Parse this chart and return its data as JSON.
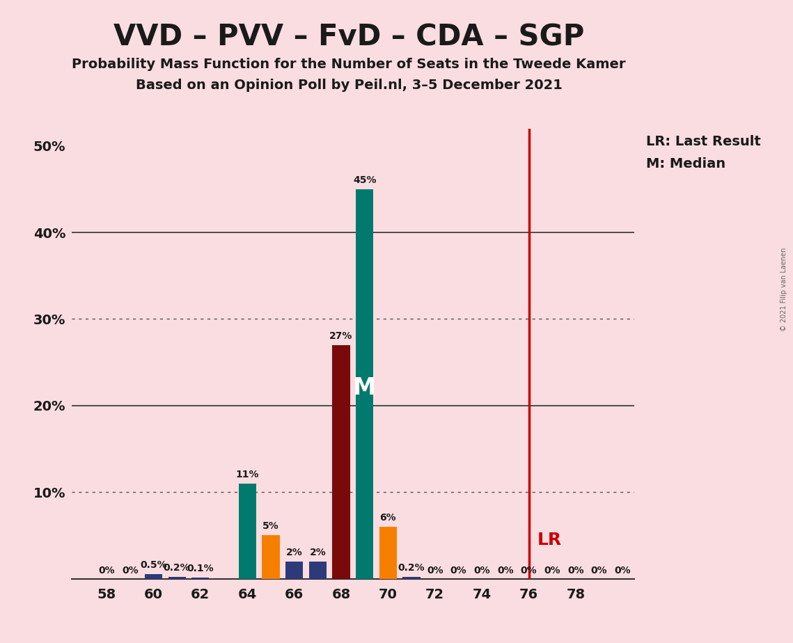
{
  "title": "VVD – PVV – FvD – CDA – SGP",
  "subtitle1": "Probability Mass Function for the Number of Seats in the Tweede Kamer",
  "subtitle2": "Based on an Opinion Poll by Peil.nl, 3–5 December 2021",
  "copyright": "© 2021 Filip van Laenen",
  "background_color": "#f9dde0",
  "bar_data": [
    {
      "seat": 58,
      "value": 0,
      "color": "#2d3a7a",
      "label": "0%"
    },
    {
      "seat": 59,
      "value": 0,
      "color": "#2d3a7a",
      "label": "0%"
    },
    {
      "seat": 60,
      "value": 0.5,
      "color": "#2d3a7a",
      "label": "0.5%"
    },
    {
      "seat": 61,
      "value": 0.2,
      "color": "#2d3a7a",
      "label": "0.2%"
    },
    {
      "seat": 62,
      "value": 0.1,
      "color": "#2d3a7a",
      "label": "0.1%"
    },
    {
      "seat": 63,
      "value": 0,
      "color": "#2d3a7a",
      "label": null
    },
    {
      "seat": 64,
      "value": 11,
      "color": "#007a6e",
      "label": "11%"
    },
    {
      "seat": 65,
      "value": 5,
      "color": "#f77f00",
      "label": "5%"
    },
    {
      "seat": 66,
      "value": 2,
      "color": "#2d3a7a",
      "label": "2%"
    },
    {
      "seat": 67,
      "value": 2,
      "color": "#2d3a7a",
      "label": "2%"
    },
    {
      "seat": 68,
      "value": 27,
      "color": "#7a0a0a",
      "label": "27%"
    },
    {
      "seat": 69,
      "value": 45,
      "color": "#007a6e",
      "label": "45%",
      "median": true
    },
    {
      "seat": 70,
      "value": 6,
      "color": "#f77f00",
      "label": "6%"
    },
    {
      "seat": 71,
      "value": 0.2,
      "color": "#2d3a7a",
      "label": "0.2%"
    },
    {
      "seat": 72,
      "value": 0,
      "color": "#2d3a7a",
      "label": "0%"
    },
    {
      "seat": 73,
      "value": 0,
      "color": "#2d3a7a",
      "label": "0%"
    },
    {
      "seat": 74,
      "value": 0,
      "color": "#2d3a7a",
      "label": "0%"
    },
    {
      "seat": 75,
      "value": 0,
      "color": "#2d3a7a",
      "label": "0%"
    },
    {
      "seat": 76,
      "value": 0,
      "color": "#2d3a7a",
      "label": "0%"
    },
    {
      "seat": 77,
      "value": 0,
      "color": "#2d3a7a",
      "label": "0%"
    },
    {
      "seat": 78,
      "value": 0,
      "color": "#2d3a7a",
      "label": "0%"
    },
    {
      "seat": 79,
      "value": 0,
      "color": "#2d3a7a",
      "label": "0%"
    },
    {
      "seat": 80,
      "value": 0,
      "color": "#2d3a7a",
      "label": "0%"
    }
  ],
  "median_seat": 69,
  "last_result_seat": 76,
  "ylim": [
    0,
    52
  ],
  "xlim": [
    56.5,
    80.5
  ],
  "xtick_seats": [
    58,
    60,
    62,
    64,
    66,
    68,
    70,
    72,
    74,
    76,
    78
  ],
  "yticks": [
    0,
    10,
    20,
    30,
    40,
    50
  ],
  "ytick_labels": [
    "",
    "10%",
    "20%",
    "30%",
    "40%",
    "50%"
  ],
  "solid_gridlines": [
    20,
    40
  ],
  "dotted_gridlines": [
    10,
    30
  ],
  "bar_width": 0.75,
  "label_fontsize": 10,
  "tick_fontsize": 14,
  "title_fontsize": 30,
  "subtitle_fontsize": 14,
  "legend_fontsize": 14
}
